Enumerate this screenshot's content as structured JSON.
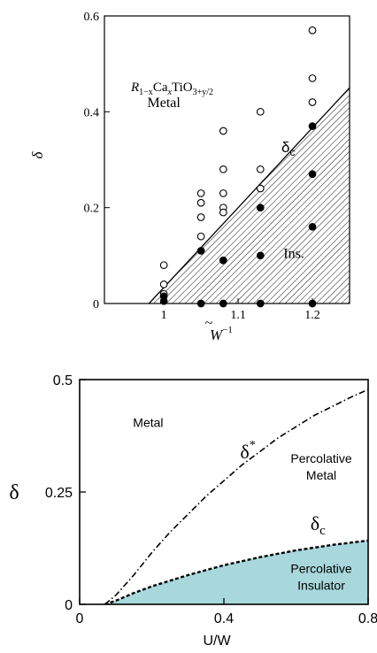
{
  "chart_data": [
    {
      "type": "scatter",
      "title": "",
      "xlabel_main": "W",
      "xlabel_exp": "−1",
      "ylabel": "δ",
      "xlim": [
        0.92,
        1.25
      ],
      "ylim": [
        0,
        0.6
      ],
      "xticks": [
        {
          "v": 1,
          "label": "1"
        },
        {
          "v": 1.1,
          "label": "1.1"
        },
        {
          "v": 1.2,
          "label": "1.2"
        }
      ],
      "yticks": [
        {
          "v": 0,
          "label": "0"
        },
        {
          "v": 0.2,
          "label": "0.2"
        },
        {
          "v": 0.4,
          "label": "0.4"
        },
        {
          "v": 0.6,
          "label": "0.6"
        }
      ],
      "formula": {
        "r": "R",
        "sub1": "1−x",
        "ca": "Ca",
        "sub2": "x",
        "tio": "TiO",
        "sub3": "3+y/2"
      },
      "regions": [
        {
          "label": "Metal",
          "x": 1.0,
          "y": 0.41
        },
        {
          "label": "Ins.",
          "x": 1.175,
          "y": 0.095
        }
      ],
      "boundary": {
        "label_main": "δ",
        "label_sub": "c",
        "x": [
          0.98,
          1.25
        ],
        "y": [
          0,
          0.45
        ]
      },
      "series": [
        {
          "marker": "open",
          "points": [
            [
              1.0,
              0.08
            ],
            [
              1.0,
              0.04
            ],
            [
              1.0,
              0.02
            ],
            [
              1.05,
              0.23
            ],
            [
              1.05,
              0.21
            ],
            [
              1.05,
              0.18
            ],
            [
              1.05,
              0.14
            ],
            [
              1.08,
              0.36
            ],
            [
              1.08,
              0.28
            ],
            [
              1.08,
              0.23
            ],
            [
              1.08,
              0.2
            ],
            [
              1.08,
              0.19
            ],
            [
              1.13,
              0.4
            ],
            [
              1.13,
              0.28
            ],
            [
              1.13,
              0.24
            ],
            [
              1.2,
              0.57
            ],
            [
              1.2,
              0.47
            ],
            [
              1.2,
              0.42
            ]
          ]
        },
        {
          "marker": "filled",
          "points": [
            [
              1.0,
              0.015
            ],
            [
              1.0,
              0.005
            ],
            [
              1.05,
              0.11
            ],
            [
              1.05,
              0.0
            ],
            [
              1.08,
              0.09
            ],
            [
              1.08,
              0.0
            ],
            [
              1.13,
              0.2
            ],
            [
              1.13,
              0.1
            ],
            [
              1.13,
              0.0
            ],
            [
              1.2,
              0.37
            ],
            [
              1.2,
              0.27
            ],
            [
              1.2,
              0.16
            ],
            [
              1.2,
              0.0
            ]
          ]
        }
      ]
    },
    {
      "type": "line",
      "title": "",
      "xlabel": "U/W",
      "ylabel": "δ",
      "xlim": [
        0,
        0.8
      ],
      "ylim": [
        0,
        0.5
      ],
      "xticks": [
        {
          "v": 0,
          "label": "0"
        },
        {
          "v": 0.4,
          "label": "0.4"
        },
        {
          "v": 0.8,
          "label": "0.8"
        }
      ],
      "yticks": [
        {
          "v": 0,
          "label": "0"
        },
        {
          "v": 0.25,
          "label": "0.25"
        },
        {
          "v": 0.5,
          "label": "0.5"
        }
      ],
      "fill_color": "#a8d8dc",
      "regions": [
        {
          "label": [
            "Metal"
          ],
          "x": 0.19,
          "y": 0.395
        },
        {
          "label": [
            "Percolative",
            "Metal"
          ],
          "x": 0.67,
          "y": 0.315
        },
        {
          "label": [
            "Percolative",
            "Insulator"
          ],
          "x": 0.67,
          "y": 0.07
        }
      ],
      "series": [
        {
          "name": "δ*",
          "label_main": "δ",
          "label_sup": "*",
          "label_at": [
            0.445,
            0.325
          ],
          "style": "dashdot",
          "x": [
            0.07,
            0.1,
            0.15,
            0.2,
            0.25,
            0.3,
            0.35,
            0.4,
            0.45,
            0.5,
            0.55,
            0.6,
            0.65,
            0.7,
            0.75,
            0.8
          ],
          "y": [
            0.0,
            0.02,
            0.065,
            0.115,
            0.16,
            0.2,
            0.24,
            0.275,
            0.31,
            0.34,
            0.37,
            0.395,
            0.42,
            0.44,
            0.46,
            0.478
          ]
        },
        {
          "name": "δc",
          "label_main": "δ",
          "label_sub": "c",
          "label_at": [
            0.64,
            0.165
          ],
          "style": "dashed",
          "fill_below": true,
          "x": [
            0.07,
            0.1,
            0.15,
            0.2,
            0.3,
            0.4,
            0.5,
            0.6,
            0.7,
            0.8
          ],
          "y": [
            0.0,
            0.008,
            0.025,
            0.04,
            0.065,
            0.087,
            0.105,
            0.12,
            0.132,
            0.142
          ]
        }
      ]
    }
  ]
}
